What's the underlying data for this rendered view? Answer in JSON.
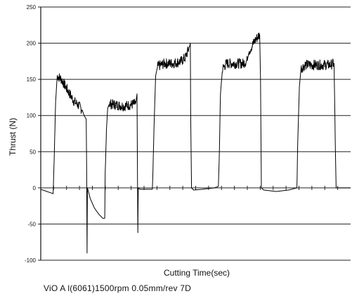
{
  "chart_data": {
    "type": "line",
    "title": "",
    "xlabel": "Cutting   Time(sec)",
    "ylabel": "Thrust   (N)",
    "ylim": [
      -100,
      250
    ],
    "yticks": [
      -100,
      -50,
      0,
      50,
      100,
      150,
      200,
      250
    ],
    "grid": true,
    "series": [
      {
        "values": [
          [
            0,
            -2
          ],
          [
            2,
            -6
          ],
          [
            3,
            -8
          ],
          [
            3.3,
            50
          ],
          [
            3.6,
            120
          ],
          [
            4,
            155
          ],
          [
            5,
            150
          ],
          [
            6,
            140
          ],
          [
            7,
            130
          ],
          [
            8,
            120
          ],
          [
            9,
            115
          ],
          [
            10,
            108
          ],
          [
            10.5,
            100
          ],
          [
            11,
            95
          ],
          [
            11.1,
            30
          ],
          [
            11.2,
            -90
          ],
          [
            11.3,
            0
          ],
          [
            12,
            -15
          ],
          [
            13,
            -28
          ],
          [
            14,
            -36
          ],
          [
            15,
            -42
          ],
          [
            15.5,
            -42
          ],
          [
            15.6,
            20
          ],
          [
            15.9,
            80
          ],
          [
            16.2,
            110
          ],
          [
            16.6,
            116
          ],
          [
            18,
            115
          ],
          [
            20,
            113
          ],
          [
            22,
            115
          ],
          [
            23,
            117
          ],
          [
            23.3,
            130
          ],
          [
            23.4,
            30
          ],
          [
            23.5,
            -62
          ],
          [
            23.6,
            0
          ],
          [
            24,
            -2
          ],
          [
            26,
            -2
          ],
          [
            27,
            -2
          ],
          [
            27.1,
            10
          ],
          [
            27.4,
            80
          ],
          [
            27.8,
            155
          ],
          [
            28.3,
            168
          ],
          [
            30,
            172
          ],
          [
            32,
            172
          ],
          [
            34,
            175
          ],
          [
            35,
            180
          ],
          [
            36,
            195
          ],
          [
            36.2,
            200
          ],
          [
            36.3,
            100
          ],
          [
            36.5,
            0
          ],
          [
            37,
            -3
          ],
          [
            39,
            -2
          ],
          [
            42,
            0
          ],
          [
            43,
            2
          ],
          [
            43.2,
            40
          ],
          [
            43.5,
            130
          ],
          [
            44,
            165
          ],
          [
            45,
            172
          ],
          [
            47,
            172
          ],
          [
            49,
            172
          ],
          [
            50,
            176
          ],
          [
            50.5,
            190
          ],
          [
            52,
            205
          ],
          [
            53,
            212
          ],
          [
            53.2,
            150
          ],
          [
            53.4,
            0
          ],
          [
            54,
            -3
          ],
          [
            57,
            -5
          ],
          [
            60,
            -3
          ],
          [
            62,
            0
          ],
          [
            62.2,
            60
          ],
          [
            62.6,
            140
          ],
          [
            63,
            165
          ],
          [
            64,
            170
          ],
          [
            66,
            170
          ],
          [
            68,
            170
          ],
          [
            70,
            170
          ],
          [
            71,
            172
          ],
          [
            71.3,
            60
          ],
          [
            71.5,
            0
          ],
          [
            75,
            0
          ]
        ]
      }
    ],
    "xlim": [
      0,
      75
    ]
  },
  "caption": "ViO A l(6061)1500rpm 0.05mm/rev 7D"
}
